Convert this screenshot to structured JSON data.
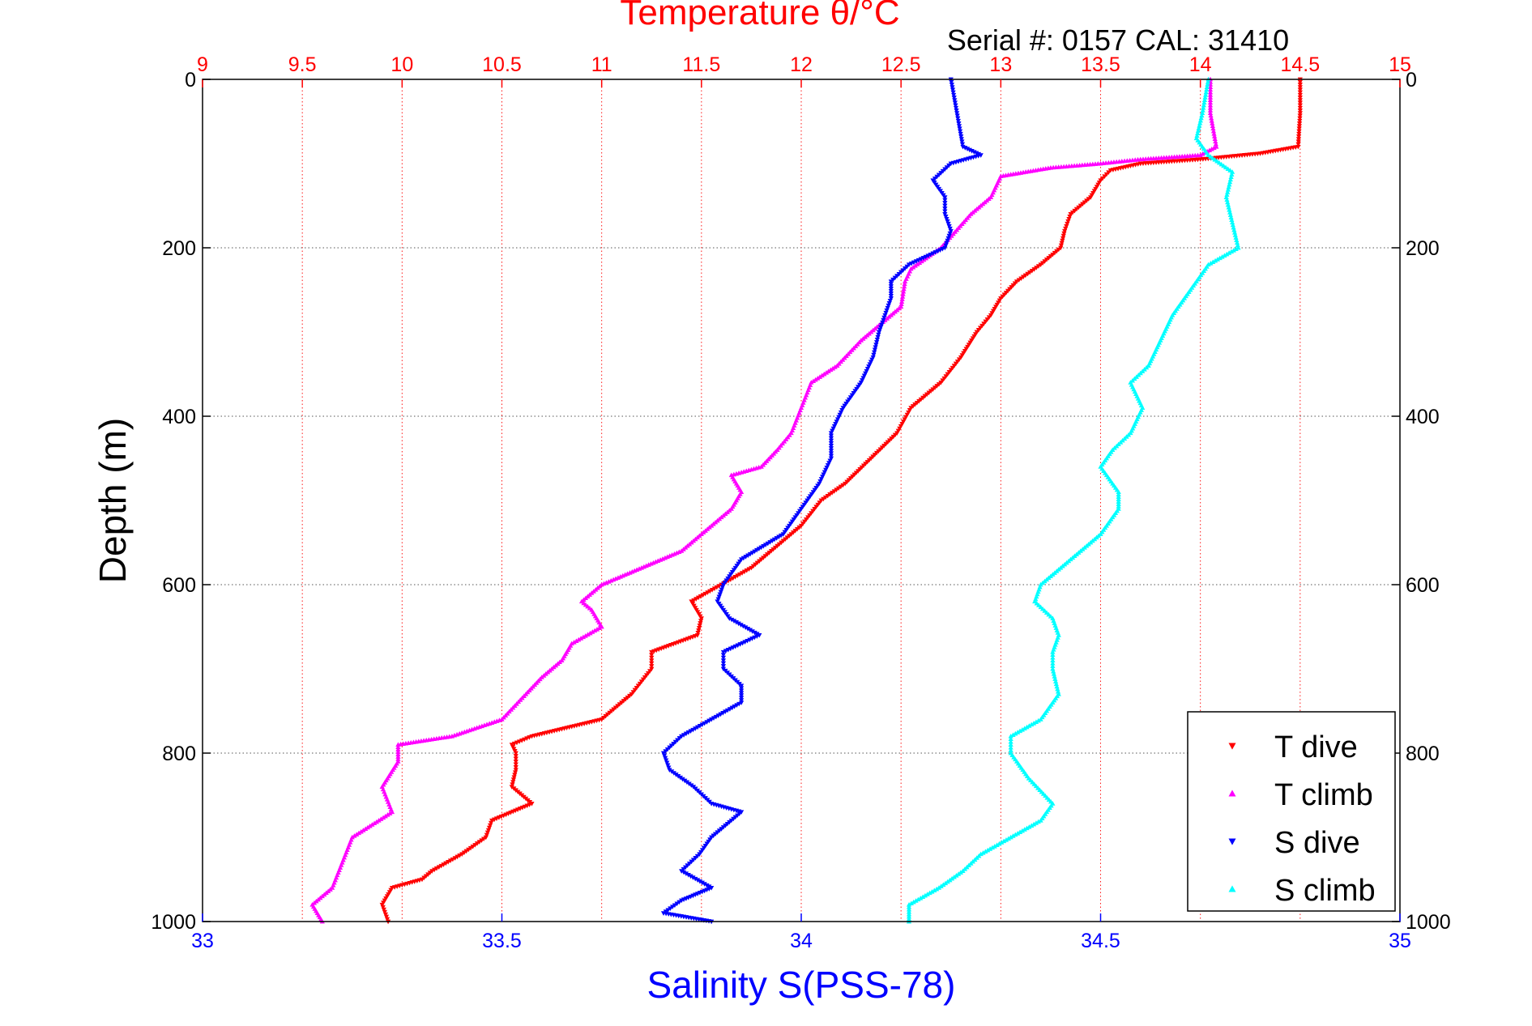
{
  "chart_data": {
    "type": "scatter",
    "title": "Temperature θ/°C",
    "serial_label": "Serial #: 0157  CAL: 31410",
    "ylabel": "Depth (m)",
    "xlabel_bottom": "Salinity S(PSS-78)",
    "ylim": [
      0,
      1000
    ],
    "y_reversed": true,
    "yticks": [
      0,
      200,
      400,
      600,
      800,
      1000
    ],
    "x_top": {
      "label": "Temperature θ/°C",
      "lim": [
        9,
        15
      ],
      "ticks": [
        9,
        9.5,
        10,
        10.5,
        11,
        11.5,
        12,
        12.5,
        13,
        13.5,
        14,
        14.5,
        15
      ]
    },
    "x_bottom": {
      "label": "Salinity S(PSS-78)",
      "lim": [
        33,
        35
      ],
      "ticks": [
        33,
        33.5,
        34,
        34.5,
        35
      ]
    },
    "colors": {
      "temperature": "#ff0000",
      "salinity": "#0000ff",
      "grid": "#555555"
    },
    "legend": {
      "position": "bottom-right",
      "entries": [
        "T dive",
        "T climb",
        "S dive",
        "S climb"
      ]
    },
    "series": [
      {
        "name": "T dive",
        "axis": "top",
        "color": "#ff0000",
        "marker": "triangle-down",
        "points": [
          [
            0,
            14.5
          ],
          [
            40,
            14.5
          ],
          [
            80,
            14.49
          ],
          [
            88,
            14.3
          ],
          [
            95,
            14.0
          ],
          [
            100,
            13.7
          ],
          [
            108,
            13.55
          ],
          [
            120,
            13.5
          ],
          [
            140,
            13.45
          ],
          [
            160,
            13.35
          ],
          [
            180,
            13.32
          ],
          [
            200,
            13.3
          ],
          [
            220,
            13.2
          ],
          [
            240,
            13.08
          ],
          [
            260,
            13.0
          ],
          [
            280,
            12.95
          ],
          [
            300,
            12.88
          ],
          [
            330,
            12.8
          ],
          [
            360,
            12.7
          ],
          [
            390,
            12.55
          ],
          [
            420,
            12.48
          ],
          [
            450,
            12.35
          ],
          [
            480,
            12.22
          ],
          [
            500,
            12.1
          ],
          [
            530,
            12.0
          ],
          [
            560,
            11.85
          ],
          [
            580,
            11.75
          ],
          [
            600,
            11.6
          ],
          [
            620,
            11.45
          ],
          [
            640,
            11.5
          ],
          [
            660,
            11.48
          ],
          [
            680,
            11.25
          ],
          [
            700,
            11.25
          ],
          [
            730,
            11.15
          ],
          [
            760,
            11.0
          ],
          [
            780,
            10.65
          ],
          [
            790,
            10.55
          ],
          [
            800,
            10.57
          ],
          [
            820,
            10.57
          ],
          [
            840,
            10.55
          ],
          [
            860,
            10.65
          ],
          [
            880,
            10.45
          ],
          [
            900,
            10.42
          ],
          [
            920,
            10.3
          ],
          [
            940,
            10.15
          ],
          [
            950,
            10.1
          ],
          [
            960,
            9.95
          ],
          [
            980,
            9.9
          ],
          [
            1000,
            9.93
          ]
        ]
      },
      {
        "name": "T climb",
        "axis": "top",
        "color": "#ff00ff",
        "marker": "triangle-up",
        "points": [
          [
            0,
            14.05
          ],
          [
            40,
            14.05
          ],
          [
            80,
            14.08
          ],
          [
            90,
            14.0
          ],
          [
            95,
            13.7
          ],
          [
            100,
            13.5
          ],
          [
            105,
            13.25
          ],
          [
            115,
            13.0
          ],
          [
            140,
            12.95
          ],
          [
            160,
            12.85
          ],
          [
            200,
            12.7
          ],
          [
            225,
            12.55
          ],
          [
            240,
            12.52
          ],
          [
            270,
            12.5
          ],
          [
            290,
            12.4
          ],
          [
            310,
            12.3
          ],
          [
            340,
            12.18
          ],
          [
            360,
            12.05
          ],
          [
            390,
            12.0
          ],
          [
            420,
            11.95
          ],
          [
            440,
            11.88
          ],
          [
            460,
            11.8
          ],
          [
            470,
            11.65
          ],
          [
            490,
            11.7
          ],
          [
            510,
            11.65
          ],
          [
            540,
            11.5
          ],
          [
            560,
            11.4
          ],
          [
            580,
            11.2
          ],
          [
            600,
            11.0
          ],
          [
            620,
            10.9
          ],
          [
            630,
            10.95
          ],
          [
            650,
            11.0
          ],
          [
            670,
            10.85
          ],
          [
            690,
            10.8
          ],
          [
            710,
            10.7
          ],
          [
            730,
            10.62
          ],
          [
            760,
            10.5
          ],
          [
            780,
            10.25
          ],
          [
            790,
            9.98
          ],
          [
            810,
            9.98
          ],
          [
            840,
            9.9
          ],
          [
            870,
            9.95
          ],
          [
            900,
            9.75
          ],
          [
            930,
            9.7
          ],
          [
            960,
            9.65
          ],
          [
            980,
            9.55
          ],
          [
            1000,
            9.6
          ]
        ]
      },
      {
        "name": "S dive",
        "axis": "bottom",
        "color": "#0000ff",
        "marker": "triangle-down",
        "points": [
          [
            0,
            34.25
          ],
          [
            40,
            34.26
          ],
          [
            80,
            34.27
          ],
          [
            90,
            34.3
          ],
          [
            100,
            34.25
          ],
          [
            120,
            34.22
          ],
          [
            140,
            34.24
          ],
          [
            160,
            34.24
          ],
          [
            180,
            34.25
          ],
          [
            200,
            34.24
          ],
          [
            220,
            34.18
          ],
          [
            240,
            34.15
          ],
          [
            260,
            34.15
          ],
          [
            280,
            34.14
          ],
          [
            300,
            34.13
          ],
          [
            330,
            34.12
          ],
          [
            360,
            34.1
          ],
          [
            390,
            34.07
          ],
          [
            420,
            34.05
          ],
          [
            450,
            34.05
          ],
          [
            480,
            34.03
          ],
          [
            510,
            34.0
          ],
          [
            540,
            33.97
          ],
          [
            570,
            33.9
          ],
          [
            600,
            33.87
          ],
          [
            620,
            33.86
          ],
          [
            640,
            33.88
          ],
          [
            660,
            33.93
          ],
          [
            680,
            33.87
          ],
          [
            700,
            33.87
          ],
          [
            720,
            33.9
          ],
          [
            740,
            33.9
          ],
          [
            760,
            33.85
          ],
          [
            780,
            33.8
          ],
          [
            800,
            33.77
          ],
          [
            820,
            33.78
          ],
          [
            840,
            33.82
          ],
          [
            860,
            33.85
          ],
          [
            870,
            33.9
          ],
          [
            900,
            33.85
          ],
          [
            920,
            33.83
          ],
          [
            940,
            33.8
          ],
          [
            960,
            33.85
          ],
          [
            975,
            33.8
          ],
          [
            990,
            33.77
          ],
          [
            1000,
            33.85
          ]
        ]
      },
      {
        "name": "S climb",
        "axis": "bottom",
        "color": "#00ffff",
        "marker": "triangle-up",
        "points": [
          [
            0,
            34.68
          ],
          [
            40,
            34.67
          ],
          [
            70,
            34.66
          ],
          [
            90,
            34.68
          ],
          [
            110,
            34.72
          ],
          [
            140,
            34.71
          ],
          [
            170,
            34.72
          ],
          [
            200,
            34.73
          ],
          [
            220,
            34.68
          ],
          [
            250,
            34.65
          ],
          [
            280,
            34.62
          ],
          [
            310,
            34.6
          ],
          [
            340,
            34.58
          ],
          [
            360,
            34.55
          ],
          [
            390,
            34.57
          ],
          [
            420,
            34.55
          ],
          [
            440,
            34.52
          ],
          [
            460,
            34.5
          ],
          [
            490,
            34.53
          ],
          [
            510,
            34.53
          ],
          [
            540,
            34.5
          ],
          [
            570,
            34.45
          ],
          [
            600,
            34.4
          ],
          [
            620,
            34.39
          ],
          [
            640,
            34.42
          ],
          [
            660,
            34.43
          ],
          [
            680,
            34.42
          ],
          [
            700,
            34.42
          ],
          [
            730,
            34.43
          ],
          [
            760,
            34.4
          ],
          [
            780,
            34.35
          ],
          [
            800,
            34.35
          ],
          [
            830,
            34.38
          ],
          [
            860,
            34.42
          ],
          [
            880,
            34.4
          ],
          [
            900,
            34.35
          ],
          [
            920,
            34.3
          ],
          [
            940,
            34.27
          ],
          [
            960,
            34.23
          ],
          [
            980,
            34.18
          ],
          [
            1000,
            34.18
          ]
        ]
      }
    ]
  }
}
